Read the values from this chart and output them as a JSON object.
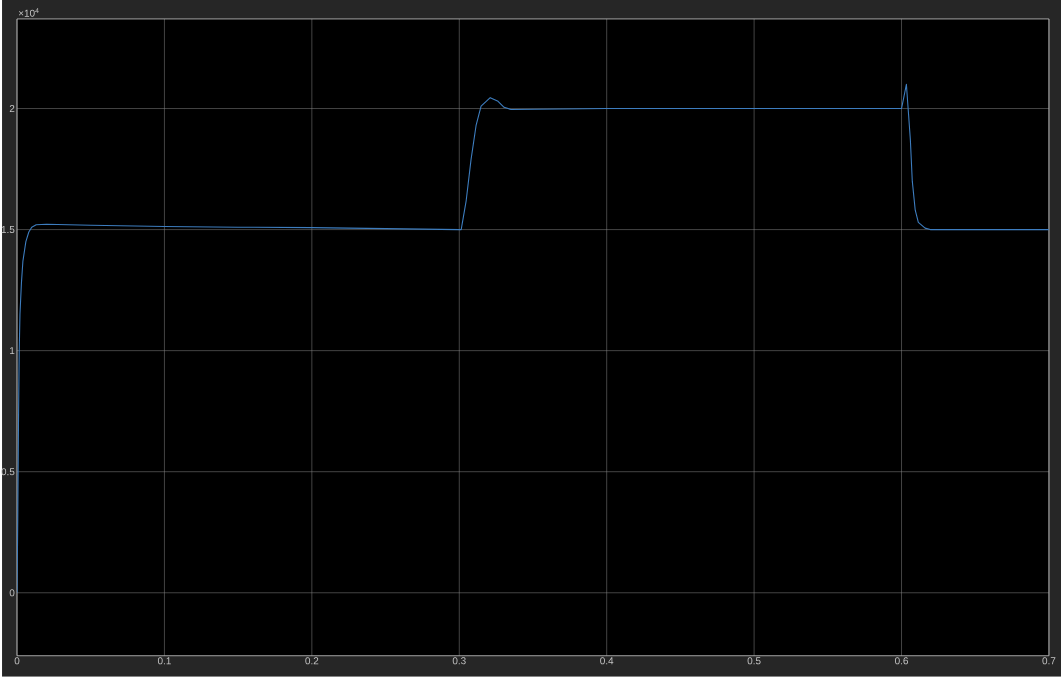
{
  "chart_data": {
    "type": "line",
    "x": [
      0,
      0.0005,
      0.001,
      0.0015,
      0.002,
      0.003,
      0.004,
      0.006,
      0.008,
      0.01,
      0.013,
      0.02,
      0.05,
      0.1,
      0.15,
      0.2,
      0.25,
      0.3,
      0.3013,
      0.3047,
      0.308,
      0.3114,
      0.3148,
      0.321,
      0.3263,
      0.3304,
      0.3351,
      0.4,
      0.45,
      0.5,
      0.55,
      0.6,
      0.6033,
      0.6046,
      0.606,
      0.6073,
      0.6093,
      0.6114,
      0.616,
      0.6195,
      0.65,
      0.7
    ],
    "series": [
      {
        "color": "#3d7dbf",
        "values": [
          0,
          0.3,
          0.7,
          1.0,
          1.15,
          1.28,
          1.37,
          1.45,
          1.49,
          1.51,
          1.52,
          1.522,
          1.518,
          1.513,
          1.51,
          1.508,
          1.504,
          1.5,
          1.5,
          1.62,
          1.79,
          1.93,
          2.01,
          2.045,
          2.03,
          2.005,
          1.996,
          2.0,
          2.0,
          2.0,
          2.0,
          2.0,
          2.1,
          1.99,
          1.87,
          1.7,
          1.58,
          1.53,
          1.506,
          1.5,
          1.5,
          1.5
        ]
      }
    ],
    "xlim": [
      0,
      0.7
    ],
    "ylim": [
      -0.26,
      2.37
    ],
    "xticks": [
      0,
      0.1,
      0.2,
      0.3,
      0.4,
      0.5,
      0.6,
      0.7
    ],
    "yticks": [
      0,
      0.5,
      1,
      1.5,
      2
    ],
    "grid": true,
    "annotations": [
      "×10$^{4}$"
    ]
  }
}
